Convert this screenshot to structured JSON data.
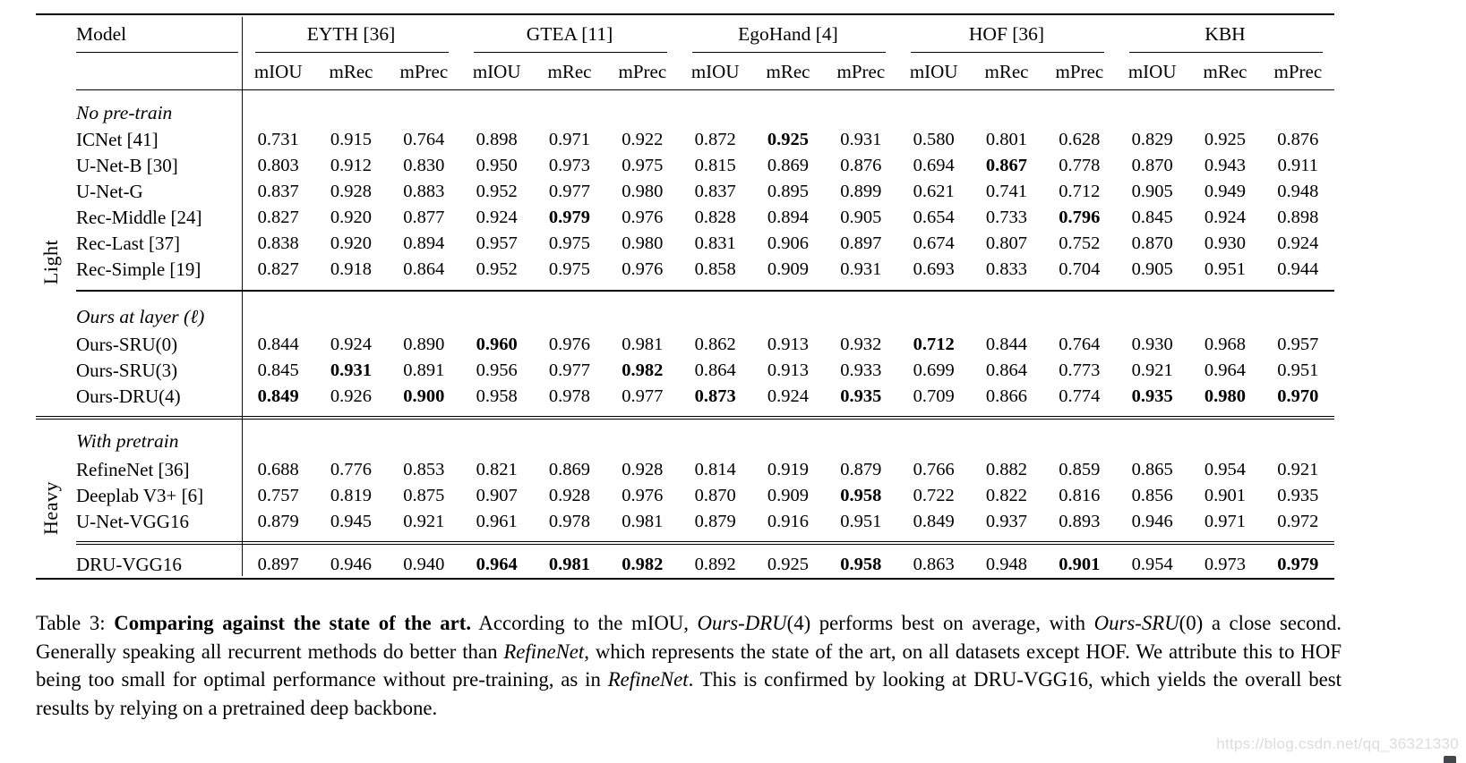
{
  "page": {
    "background": "#ffffff",
    "rule_color": "#000000",
    "watermark": "https://blog.csdn.net/qq_36321330",
    "watermark_color": "#dcdcdc"
  },
  "table": {
    "model_header": "Model",
    "datasets": [
      "EYTH [36]",
      "GTEA [11]",
      "EgoHand [4]",
      "HOF [36]",
      "KBH"
    ],
    "metrics": [
      "mIOU",
      "mRec",
      "mPrec"
    ],
    "side_labels": {
      "light": "Light",
      "heavy": "Heavy"
    },
    "sections": [
      {
        "side": "Light",
        "blocks": [
          {
            "heading": "No pre-train",
            "rows": [
              {
                "model": "ICNet [41]",
                "values": [
                  "0.731",
                  "0.915",
                  "0.764",
                  "0.898",
                  "0.971",
                  "0.922",
                  "0.872",
                  "0.925",
                  "0.931",
                  "0.580",
                  "0.801",
                  "0.628",
                  "0.829",
                  "0.925",
                  "0.876"
                ],
                "bold": [
                  7
                ]
              },
              {
                "model": "U-Net-B [30]",
                "values": [
                  "0.803",
                  "0.912",
                  "0.830",
                  "0.950",
                  "0.973",
                  "0.975",
                  "0.815",
                  "0.869",
                  "0.876",
                  "0.694",
                  "0.867",
                  "0.778",
                  "0.870",
                  "0.943",
                  "0.911"
                ],
                "bold": [
                  10
                ]
              },
              {
                "model": "U-Net-G",
                "values": [
                  "0.837",
                  "0.928",
                  "0.883",
                  "0.952",
                  "0.977",
                  "0.980",
                  "0.837",
                  "0.895",
                  "0.899",
                  "0.621",
                  "0.741",
                  "0.712",
                  "0.905",
                  "0.949",
                  "0.948"
                ],
                "bold": []
              },
              {
                "model": "Rec-Middle [24]",
                "values": [
                  "0.827",
                  "0.920",
                  "0.877",
                  "0.924",
                  "0.979",
                  "0.976",
                  "0.828",
                  "0.894",
                  "0.905",
                  "0.654",
                  "0.733",
                  "0.796",
                  "0.845",
                  "0.924",
                  "0.898"
                ],
                "bold": [
                  4,
                  11
                ]
              },
              {
                "model": "Rec-Last [37]",
                "values": [
                  "0.838",
                  "0.920",
                  "0.894",
                  "0.957",
                  "0.975",
                  "0.980",
                  "0.831",
                  "0.906",
                  "0.897",
                  "0.674",
                  "0.807",
                  "0.752",
                  "0.870",
                  "0.930",
                  "0.924"
                ],
                "bold": []
              },
              {
                "model": "Rec-Simple [19]",
                "values": [
                  "0.827",
                  "0.918",
                  "0.864",
                  "0.952",
                  "0.975",
                  "0.976",
                  "0.858",
                  "0.909",
                  "0.931",
                  "0.693",
                  "0.833",
                  "0.704",
                  "0.905",
                  "0.951",
                  "0.944"
                ],
                "bold": []
              }
            ]
          },
          {
            "heading": "Ours at layer (ℓ)",
            "rows": [
              {
                "model": "Ours-SRU(0)",
                "values": [
                  "0.844",
                  "0.924",
                  "0.890",
                  "0.960",
                  "0.976",
                  "0.981",
                  "0.862",
                  "0.913",
                  "0.932",
                  "0.712",
                  "0.844",
                  "0.764",
                  "0.930",
                  "0.968",
                  "0.957"
                ],
                "bold": [
                  3,
                  9
                ]
              },
              {
                "model": "Ours-SRU(3)",
                "values": [
                  "0.845",
                  "0.931",
                  "0.891",
                  "0.956",
                  "0.977",
                  "0.982",
                  "0.864",
                  "0.913",
                  "0.933",
                  "0.699",
                  "0.864",
                  "0.773",
                  "0.921",
                  "0.964",
                  "0.951"
                ],
                "bold": [
                  1,
                  5
                ]
              },
              {
                "model": "Ours-DRU(4)",
                "values": [
                  "0.849",
                  "0.926",
                  "0.900",
                  "0.958",
                  "0.978",
                  "0.977",
                  "0.873",
                  "0.924",
                  "0.935",
                  "0.709",
                  "0.866",
                  "0.774",
                  "0.935",
                  "0.980",
                  "0.970"
                ],
                "bold": [
                  0,
                  2,
                  6,
                  8,
                  12,
                  13,
                  14
                ]
              }
            ]
          }
        ]
      },
      {
        "side": "Heavy",
        "blocks": [
          {
            "heading": "With pretrain",
            "rows": [
              {
                "model": "RefineNet [36]",
                "values": [
                  "0.688",
                  "0.776",
                  "0.853",
                  "0.821",
                  "0.869",
                  "0.928",
                  "0.814",
                  "0.919",
                  "0.879",
                  "0.766",
                  "0.882",
                  "0.859",
                  "0.865",
                  "0.954",
                  "0.921"
                ],
                "bold": []
              },
              {
                "model": "Deeplab V3+ [6]",
                "values": [
                  "0.757",
                  "0.819",
                  "0.875",
                  "0.907",
                  "0.928",
                  "0.976",
                  "0.870",
                  "0.909",
                  "0.958",
                  "0.722",
                  "0.822",
                  "0.816",
                  "0.856",
                  "0.901",
                  "0.935"
                ],
                "bold": [
                  8
                ]
              },
              {
                "model": "U-Net-VGG16",
                "values": [
                  "0.879",
                  "0.945",
                  "0.921",
                  "0.961",
                  "0.978",
                  "0.981",
                  "0.879",
                  "0.916",
                  "0.951",
                  "0.849",
                  "0.937",
                  "0.893",
                  "0.946",
                  "0.971",
                  "0.972"
                ],
                "bold": []
              }
            ]
          },
          {
            "heading": null,
            "rows": [
              {
                "model": "DRU-VGG16",
                "values": [
                  "0.897",
                  "0.946",
                  "0.940",
                  "0.964",
                  "0.981",
                  "0.982",
                  "0.892",
                  "0.925",
                  "0.958",
                  "0.863",
                  "0.948",
                  "0.901",
                  "0.954",
                  "0.973",
                  "0.979"
                ],
                "bold": [
                  3,
                  4,
                  5,
                  8,
                  11,
                  14
                ]
              }
            ]
          }
        ]
      }
    ]
  },
  "caption": {
    "segments": [
      {
        "text": "Table 3: "
      },
      {
        "text": "Comparing against the state of the art.",
        "bold": true
      },
      {
        "text": "  According to the mIOU, "
      },
      {
        "text": "Ours-DRU",
        "italic": true
      },
      {
        "text": "(4) performs best on average, with "
      },
      {
        "text": "Ours-SRU",
        "italic": true
      },
      {
        "text": "(0) a close second. Generally speaking all recurrent methods do better than "
      },
      {
        "text": "RefineNet",
        "italic": true
      },
      {
        "text": ", which represents the state of the art, on all datasets except HOF. We attribute this to HOF being too small for optimal performance without pre-training, as in "
      },
      {
        "text": "RefineNet",
        "italic": true
      },
      {
        "text": ". This is confirmed by looking at DRU-VGG16, which yields the overall best results by relying on a pretrained deep backbone."
      }
    ]
  }
}
